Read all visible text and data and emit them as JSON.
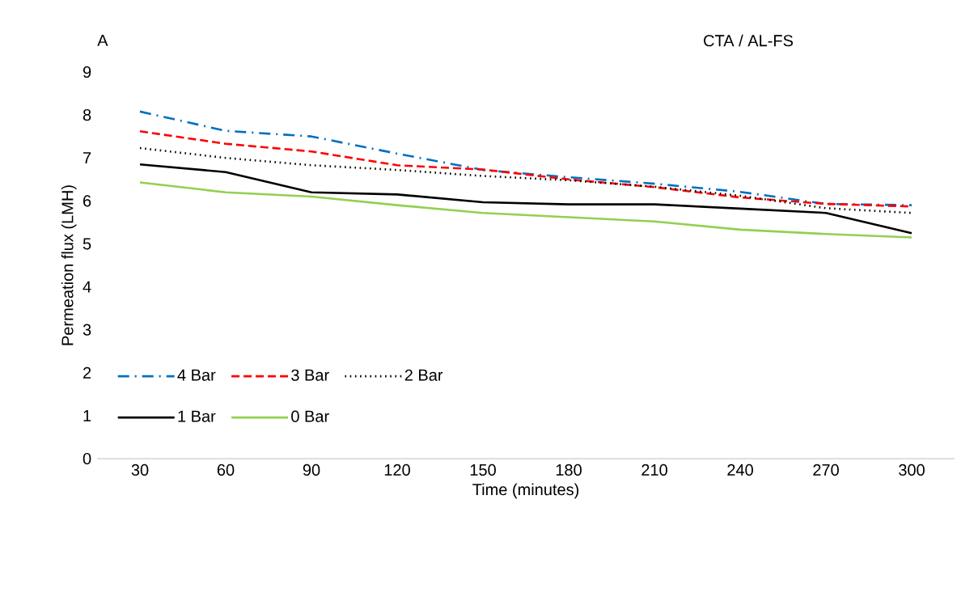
{
  "chart_data": {
    "type": "line",
    "annotations": [
      "A",
      "CTA / AL-FS"
    ],
    "xlabel": "Time (minutes)",
    "ylabel": "Permeation flux (LMH)",
    "categories": [
      "30",
      "60",
      "90",
      "120",
      "150",
      "180",
      "210",
      "240",
      "270",
      "300"
    ],
    "ylim": [
      0,
      9
    ],
    "yticks": [
      0,
      1,
      2,
      3,
      4,
      5,
      6,
      7,
      8,
      9
    ],
    "grid": false,
    "legend": "bottom left",
    "marker": "none",
    "series": [
      {
        "name": "4 Bar",
        "color": "#0070c0",
        "line_style": "dashdot",
        "values": [
          8.08,
          7.63,
          7.5,
          7.1,
          6.72,
          6.55,
          6.4,
          6.21,
          5.93,
          5.9
        ]
      },
      {
        "name": "3 Bar",
        "color": "#ff0000",
        "line_style": "dashed",
        "values": [
          7.62,
          7.33,
          7.15,
          6.83,
          6.73,
          6.5,
          6.32,
          6.08,
          5.93,
          5.87
        ]
      },
      {
        "name": "2 Bar",
        "color": "#000000",
        "line_style": "dotted",
        "values": [
          7.23,
          7.0,
          6.83,
          6.72,
          6.58,
          6.48,
          6.33,
          6.12,
          5.83,
          5.72
        ]
      },
      {
        "name": "1 Bar",
        "color": "#000000",
        "line_style": "solid",
        "values": [
          6.85,
          6.67,
          6.2,
          6.15,
          5.97,
          5.92,
          5.92,
          5.82,
          5.72,
          5.25
        ]
      },
      {
        "name": "0 Bar",
        "color": "#92d050",
        "line_style": "solid",
        "values": [
          6.43,
          6.2,
          6.1,
          5.9,
          5.72,
          5.62,
          5.52,
          5.33,
          5.23,
          5.15
        ]
      }
    ]
  }
}
